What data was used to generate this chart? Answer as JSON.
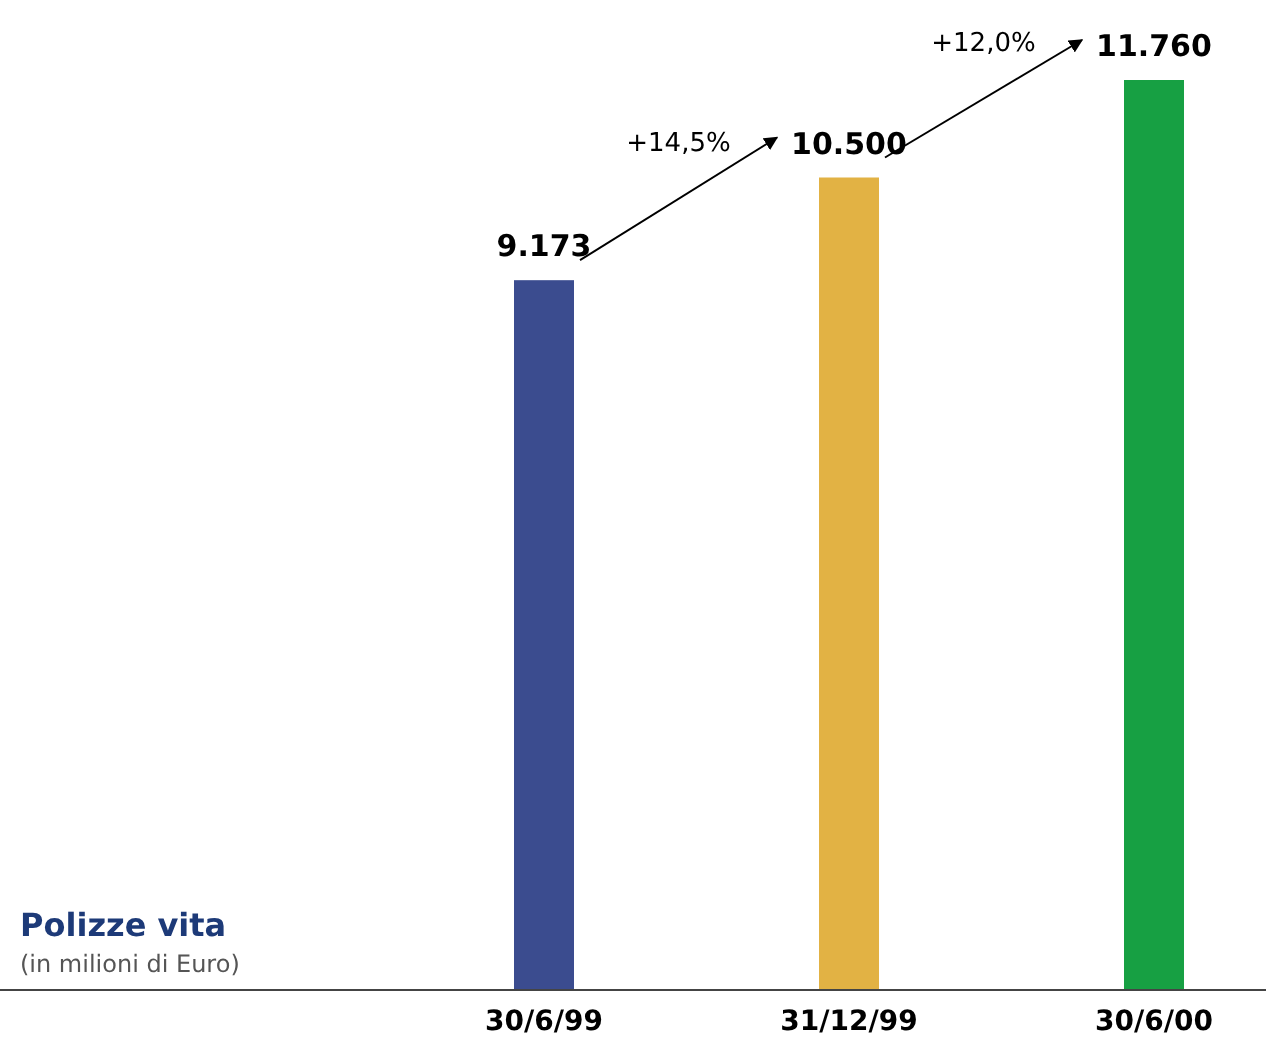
{
  "chart_data": {
    "type": "bar",
    "title": "Polizze vita",
    "subtitle": "(in milioni di Euro)",
    "categories": [
      "30/6/99",
      "31/12/99",
      "30/6/00"
    ],
    "values": [
      9173,
      10500,
      11760
    ],
    "colors": [
      "#3b4c8f",
      "#e2b244",
      "#17a043"
    ],
    "value_labels": [
      "9.173",
      "10.500",
      "11.760"
    ],
    "annotations": [
      "+14,5%",
      "+12,0%"
    ]
  }
}
